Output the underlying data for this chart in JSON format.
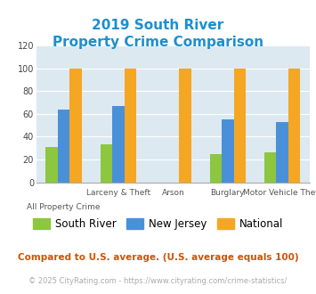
{
  "title_line1": "2019 South River",
  "title_line2": "Property Crime Comparison",
  "title_color": "#1b8fd1",
  "south_river": [
    31,
    33,
    0,
    25,
    26
  ],
  "new_jersey": [
    64,
    67,
    0,
    55,
    53
  ],
  "national": [
    100,
    100,
    100,
    100,
    100
  ],
  "colors": {
    "south_river": "#8dc63f",
    "new_jersey": "#4a90d9",
    "national": "#f5a623"
  },
  "ylim": [
    0,
    120
  ],
  "yticks": [
    0,
    20,
    40,
    60,
    80,
    100,
    120
  ],
  "bg_color": "#dce9f0",
  "legend_labels": [
    "South River",
    "New Jersey",
    "National"
  ],
  "footnote1": "Compared to U.S. average. (U.S. average equals 100)",
  "footnote2": "© 2025 CityRating.com - https://www.cityrating.com/crime-statistics/",
  "footnote1_color": "#cc5500",
  "footnote2_color": "#aaaaaa",
  "n_groups": 5,
  "bar_width": 0.22,
  "group_positions": [
    0,
    1,
    2,
    3,
    4
  ],
  "xlim_left": -0.5,
  "xlim_right": 4.5,
  "xlabel_top": [
    "",
    "Larceny & Theft",
    "Arson",
    "Burglary",
    "Motor Vehicle Theft"
  ],
  "xlabel_bottom": [
    "All Property Crime",
    "",
    "",
    "",
    ""
  ]
}
